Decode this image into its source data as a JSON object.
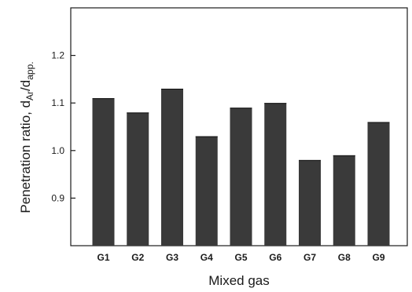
{
  "chart_data": {
    "type": "bar",
    "categories": [
      "G1",
      "G2",
      "G3",
      "G4",
      "G5",
      "G6",
      "G7",
      "G8",
      "G9"
    ],
    "values": [
      1.11,
      1.08,
      1.13,
      1.03,
      1.09,
      1.1,
      0.98,
      0.99,
      1.06
    ],
    "title": "",
    "xlabel": "Mixed gas",
    "ylabel": {
      "prefix": "Penetration ratio, d",
      "sub1": "Ar",
      "mid": "/d",
      "sub2": "app."
    },
    "ylim": [
      0.8,
      1.3
    ],
    "yticks": [
      "0.9",
      "1.0",
      "1.1",
      "1.2"
    ],
    "grid": false,
    "legend": "none",
    "colors": {
      "bar": "#3a3a3a",
      "axis": "#1a1a1a"
    }
  }
}
